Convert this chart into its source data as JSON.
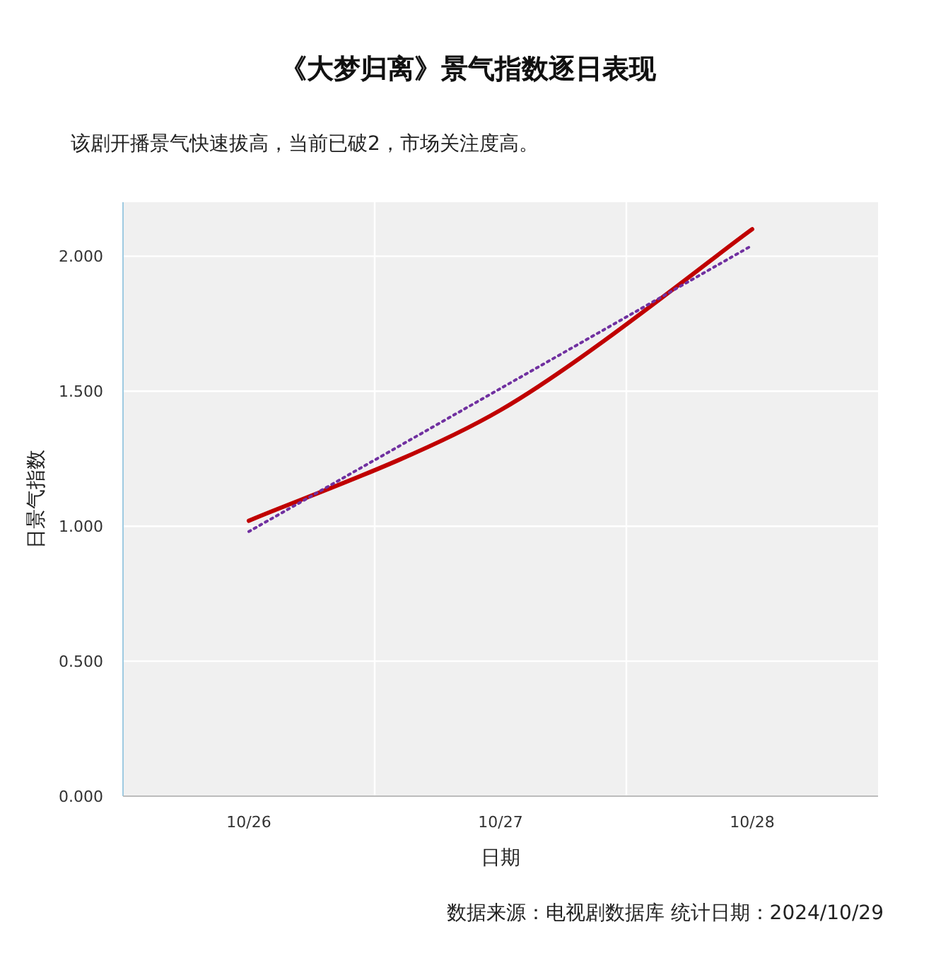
{
  "chart_data": {
    "type": "line",
    "title": "《大梦归离》景气指数逐日表现",
    "subtitle": "该剧开播景气快速拔高，当前已破2，市场关注度高。",
    "xlabel": "日期",
    "ylabel": "日景气指数",
    "categories": [
      "10/26",
      "10/27",
      "10/28"
    ],
    "series": [
      {
        "color": "#c00000",
        "line_style": "solid",
        "values": [
          1.02,
          1.43,
          2.1
        ]
      },
      {
        "color": "#7030a0",
        "line_style": "dotted",
        "values": [
          0.98,
          1.51,
          2.04
        ]
      }
    ],
    "ylim": [
      0,
      2.2
    ],
    "yticks": [
      {
        "value": 0,
        "label": "0.000"
      },
      {
        "value": 0.5,
        "label": "0.500"
      },
      {
        "value": 1,
        "label": "1.000"
      },
      {
        "value": 1.5,
        "label": "1.500"
      },
      {
        "value": 2,
        "label": "2.000"
      }
    ],
    "grid": true,
    "annotations": [
      "数据来源：电视剧数据库    统计日期：2024/10/29"
    ]
  }
}
